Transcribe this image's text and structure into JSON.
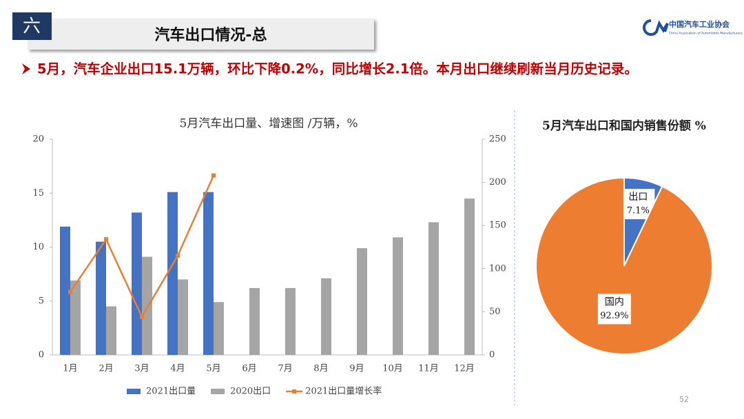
{
  "header": {
    "section": "六",
    "title": "汽车出口情况-总",
    "logo": "中国汽车工业协会",
    "logo_sub": "China Association of Automobile Manufacturers"
  },
  "bullet": "5月，汽车企业出口15.1万辆，环比下降0.2%，同比增长2.1倍。本月出口继续刷新当月历史记录。",
  "page_number": "52",
  "chart_data": [
    {
      "type": "bar",
      "title": "5月汽车出口量、增速图  /万辆，%",
      "categories": [
        "1月",
        "2月",
        "3月",
        "4月",
        "5月",
        "6月",
        "7月",
        "8月",
        "9月",
        "10月",
        "11月",
        "12月"
      ],
      "series": [
        {
          "name": "2021出口量",
          "color": "#4472c4",
          "values": [
            11.9,
            10.5,
            13.2,
            15.1,
            15.1,
            null,
            null,
            null,
            null,
            null,
            null,
            null
          ]
        },
        {
          "name": "2020出口",
          "color": "#a5a5a5",
          "values": [
            6.9,
            4.5,
            9.1,
            7.0,
            4.9,
            6.2,
            6.2,
            7.1,
            9.9,
            10.9,
            12.3,
            14.5
          ]
        },
        {
          "name": "2021出口量增长率",
          "color": "#ed7d31",
          "type": "line",
          "axis": "y2",
          "values": [
            73,
            134,
            44,
            115,
            208,
            null,
            null,
            null,
            null,
            null,
            null,
            null
          ]
        }
      ],
      "ylim": [
        0,
        20
      ],
      "yticks": [
        0,
        5,
        10,
        15,
        20
      ],
      "y2lim": [
        0,
        250
      ],
      "y2ticks": [
        0,
        50,
        100,
        150,
        200,
        250
      ],
      "grid": false,
      "legend": "bottom"
    },
    {
      "type": "pie",
      "title": "5月汽车出口和国内销售份额  %",
      "categories": [
        "出口",
        "国内"
      ],
      "values": [
        7.1,
        92.9
      ],
      "value_labels": [
        "7.1%",
        "92.9%"
      ],
      "colors": [
        "#4472c4",
        "#ed7d31"
      ]
    }
  ]
}
